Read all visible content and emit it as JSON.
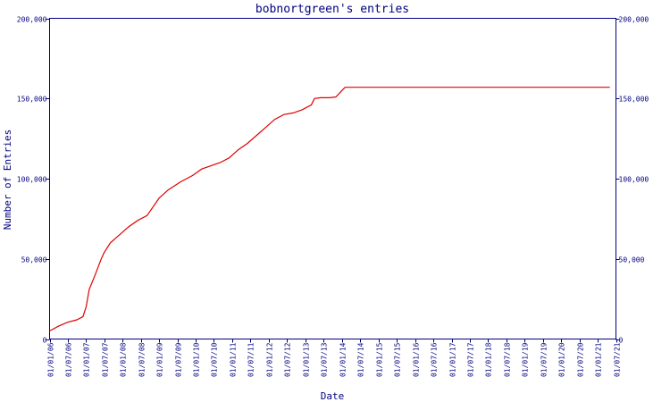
{
  "chart_data": {
    "type": "line",
    "title": "bobnortgreen's entries",
    "xlabel": "Date",
    "ylabel": "Number of Entries",
    "ylim": [
      0,
      200000
    ],
    "y_ticks": [
      {
        "value": 0,
        "label": "0"
      },
      {
        "value": 50000,
        "label": "50,000"
      },
      {
        "value": 100000,
        "label": "100,000"
      },
      {
        "value": 150000,
        "label": "150,000"
      },
      {
        "value": 200000,
        "label": "200,000"
      }
    ],
    "x_ticks": [
      "01/01/06",
      "01/07/06",
      "01/01/07",
      "01/07/07",
      "01/01/08",
      "01/07/08",
      "01/01/09",
      "01/07/09",
      "01/01/10",
      "01/07/10",
      "01/01/11",
      "01/07/11",
      "01/01/12",
      "01/07/12",
      "01/01/13",
      "01/07/13",
      "01/01/14",
      "01/07/14",
      "01/01/15",
      "01/07/15",
      "01/01/16",
      "01/07/16",
      "01/01/17",
      "01/07/17",
      "01/01/18",
      "01/07/18",
      "01/01/19",
      "01/07/19",
      "01/01/20",
      "01/07/20",
      "01/01/21",
      "01/07/21"
    ],
    "colors": {
      "axis": "#000080",
      "series": "#e00000"
    },
    "series": [
      {
        "x": [
          "2006-01-01",
          "2006-04-01",
          "2006-07-01",
          "2006-10-01",
          "2006-12-01",
          "2007-01-01",
          "2007-02-01",
          "2007-04-01",
          "2007-06-01",
          "2007-07-01",
          "2007-09-01",
          "2007-12-01",
          "2008-03-01",
          "2008-06-01",
          "2008-09-01",
          "2009-01-01",
          "2009-04-01",
          "2009-08-01",
          "2009-12-01",
          "2010-03-01",
          "2010-06-01",
          "2010-09-01",
          "2010-12-01",
          "2011-03-01",
          "2011-06-01",
          "2011-09-01",
          "2011-12-01",
          "2012-03-01",
          "2012-06-01",
          "2012-09-01",
          "2012-12-01",
          "2013-03-01",
          "2013-04-01",
          "2013-06-01",
          "2013-09-01",
          "2013-11-01",
          "2014-01-01",
          "2014-02-01",
          "2015-06-01",
          "2017-01-01",
          "2019-01-01",
          "2021-05-01"
        ],
        "values": [
          5000,
          8000,
          10500,
          12000,
          14000,
          20000,
          31000,
          40000,
          50000,
          54000,
          60000,
          65000,
          70000,
          74000,
          77000,
          88000,
          93000,
          98000,
          102000,
          106000,
          108000,
          110000,
          113000,
          118000,
          122000,
          127000,
          132000,
          137000,
          140000,
          141000,
          143000,
          146000,
          150000,
          150500,
          150500,
          151000,
          155000,
          157000,
          157000,
          157000,
          157000,
          157000
        ]
      }
    ]
  }
}
